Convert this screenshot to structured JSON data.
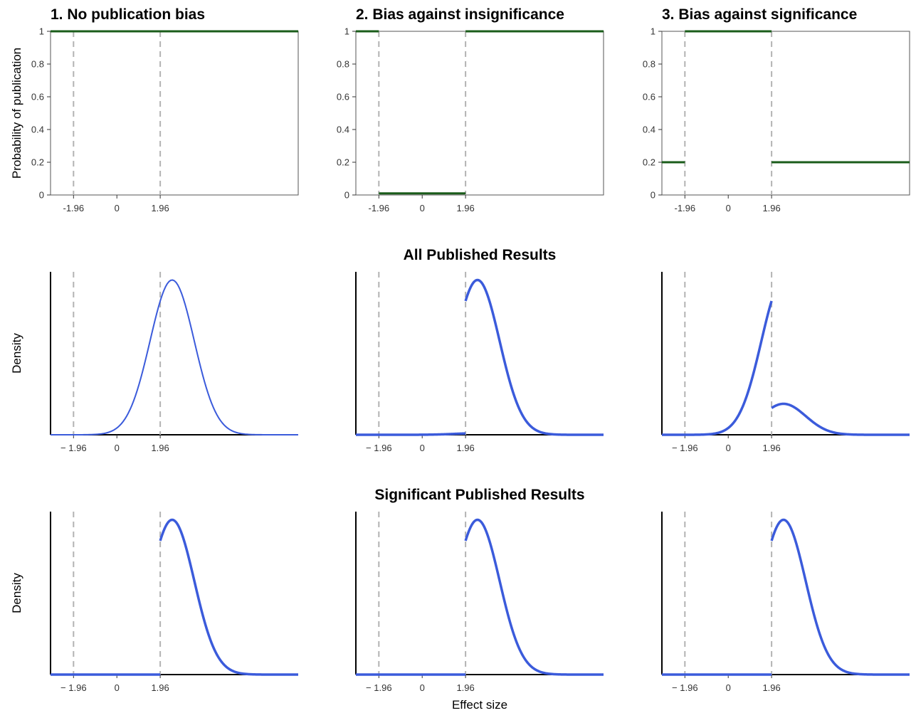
{
  "figure": {
    "row_titles": [
      "",
      "All Published Results",
      "Significant Published Results"
    ],
    "x_axis_label": "Effect size",
    "colors": {
      "probability_line": "#1a5c1a",
      "density_line": "#3b5bdb",
      "reference_line": "#b3b3b3",
      "panel_border": "#555555"
    }
  },
  "chart_data": [
    {
      "id": "prob-1",
      "type": "line",
      "row": 0,
      "col": 0,
      "title": "1. No publication bias",
      "ylabel": "Probability of publication",
      "ylim": [
        0,
        1
      ],
      "xlim": [
        -3,
        8.2
      ],
      "yticks": [
        "0",
        "0.2",
        "0.4",
        "0.6",
        "0.8",
        "1"
      ],
      "xticks": [
        "-1.96",
        "0",
        "1.96"
      ],
      "reference_lines": [
        -1.96,
        1.96
      ],
      "series": [
        {
          "segments": [
            [
              [
                -3,
                1
              ],
              [
                8.2,
                1
              ]
            ]
          ]
        }
      ]
    },
    {
      "id": "prob-2",
      "type": "line",
      "row": 0,
      "col": 1,
      "title": "2. Bias against insignificance",
      "ylabel": "",
      "ylim": [
        0,
        1
      ],
      "xlim": [
        -3,
        8.2
      ],
      "yticks": [
        "0",
        "0.2",
        "0.4",
        "0.6",
        "0.8",
        "1"
      ],
      "xticks": [
        "-1.96",
        "0",
        "1.96"
      ],
      "reference_lines": [
        -1.96,
        1.96
      ],
      "series": [
        {
          "segments": [
            [
              [
                -3,
                1
              ],
              [
                -1.96,
                1
              ]
            ],
            [
              [
                -1.96,
                0.01
              ],
              [
                1.96,
                0.01
              ]
            ],
            [
              [
                1.96,
                1
              ],
              [
                8.2,
                1
              ]
            ]
          ]
        }
      ]
    },
    {
      "id": "prob-3",
      "type": "line",
      "row": 0,
      "col": 2,
      "title": "3. Bias against significance",
      "ylabel": "",
      "ylim": [
        0,
        1
      ],
      "xlim": [
        -3,
        8.2
      ],
      "yticks": [
        "0",
        "0.2",
        "0.4",
        "0.6",
        "0.8",
        "1"
      ],
      "xticks": [
        "-1.96",
        "0",
        "1.96"
      ],
      "reference_lines": [
        -1.96,
        1.96
      ],
      "series": [
        {
          "segments": [
            [
              [
                -3,
                0.2
              ],
              [
                -1.96,
                0.2
              ]
            ],
            [
              [
                -1.96,
                1
              ],
              [
                1.96,
                1
              ]
            ],
            [
              [
                1.96,
                0.2
              ],
              [
                8.2,
                0.2
              ]
            ]
          ]
        }
      ]
    },
    {
      "id": "all-1",
      "type": "line",
      "row": 1,
      "col": 0,
      "ylabel": "Density",
      "xlim": [
        -3,
        8.2
      ],
      "ylim": [
        0,
        0.42
      ],
      "xticks": [
        "− 1.96",
        "0",
        "1.96"
      ],
      "reference_lines": [
        -1.96,
        1.96
      ],
      "distribution": {
        "family": "normal",
        "mean": 2.5,
        "sd": 1,
        "weights": [
          {
            "from": -3,
            "to": 8.2,
            "w": 1
          }
        ]
      }
    },
    {
      "id": "all-2",
      "type": "line",
      "row": 1,
      "col": 1,
      "ylabel": "",
      "xlim": [
        -3,
        8.2
      ],
      "ylim": [
        0,
        0.42
      ],
      "xticks": [
        "− 1.96",
        "0",
        "1.96"
      ],
      "reference_lines": [
        -1.96,
        1.96
      ],
      "distribution": {
        "family": "normal",
        "mean": 2.5,
        "sd": 1,
        "weights": [
          {
            "from": -3,
            "to": 1.96,
            "w": 0.01
          },
          {
            "from": 1.96,
            "to": 8.2,
            "w": 1
          }
        ]
      }
    },
    {
      "id": "all-3",
      "type": "line",
      "row": 1,
      "col": 2,
      "ylabel": "",
      "xlim": [
        -3,
        8.2
      ],
      "ylim": [
        0,
        0.42
      ],
      "xticks": [
        "− 1.96",
        "0",
        "1.96"
      ],
      "reference_lines": [
        -1.96,
        1.96
      ],
      "distribution": {
        "family": "normal",
        "mean": 2.5,
        "sd": 1,
        "weights": [
          {
            "from": -3,
            "to": 1.96,
            "w": 1
          },
          {
            "from": 1.96,
            "to": 8.2,
            "w": 0.2
          }
        ]
      }
    },
    {
      "id": "sig-1",
      "type": "line",
      "row": 2,
      "col": 0,
      "ylabel": "Density",
      "xlim": [
        -3,
        8.2
      ],
      "ylim": [
        0,
        0.42
      ],
      "xticks": [
        "− 1.96",
        "0",
        "1.96"
      ],
      "reference_lines": [
        -1.96,
        1.96
      ],
      "distribution": {
        "family": "normal",
        "mean": 2.5,
        "sd": 1,
        "weights": [
          {
            "from": -3,
            "to": 1.96,
            "w": 0
          },
          {
            "from": 1.96,
            "to": 8.2,
            "w": 1
          }
        ]
      }
    },
    {
      "id": "sig-2",
      "type": "line",
      "row": 2,
      "col": 1,
      "ylabel": "",
      "xlim": [
        -3,
        8.2
      ],
      "ylim": [
        0,
        0.42
      ],
      "xticks": [
        "− 1.96",
        "0",
        "1.96"
      ],
      "reference_lines": [
        -1.96,
        1.96
      ],
      "distribution": {
        "family": "normal",
        "mean": 2.5,
        "sd": 1,
        "weights": [
          {
            "from": -3,
            "to": 1.96,
            "w": 0
          },
          {
            "from": 1.96,
            "to": 8.2,
            "w": 1
          }
        ]
      }
    },
    {
      "id": "sig-3",
      "type": "line",
      "row": 2,
      "col": 2,
      "ylabel": "",
      "xlim": [
        -3,
        8.2
      ],
      "ylim": [
        0,
        0.42
      ],
      "xticks": [
        "− 1.96",
        "0",
        "1.96"
      ],
      "reference_lines": [
        -1.96,
        1.96
      ],
      "distribution": {
        "family": "normal",
        "mean": 2.5,
        "sd": 1,
        "weights": [
          {
            "from": -3,
            "to": 1.96,
            "w": 0
          },
          {
            "from": 1.96,
            "to": 8.2,
            "w": 1
          }
        ]
      }
    }
  ]
}
